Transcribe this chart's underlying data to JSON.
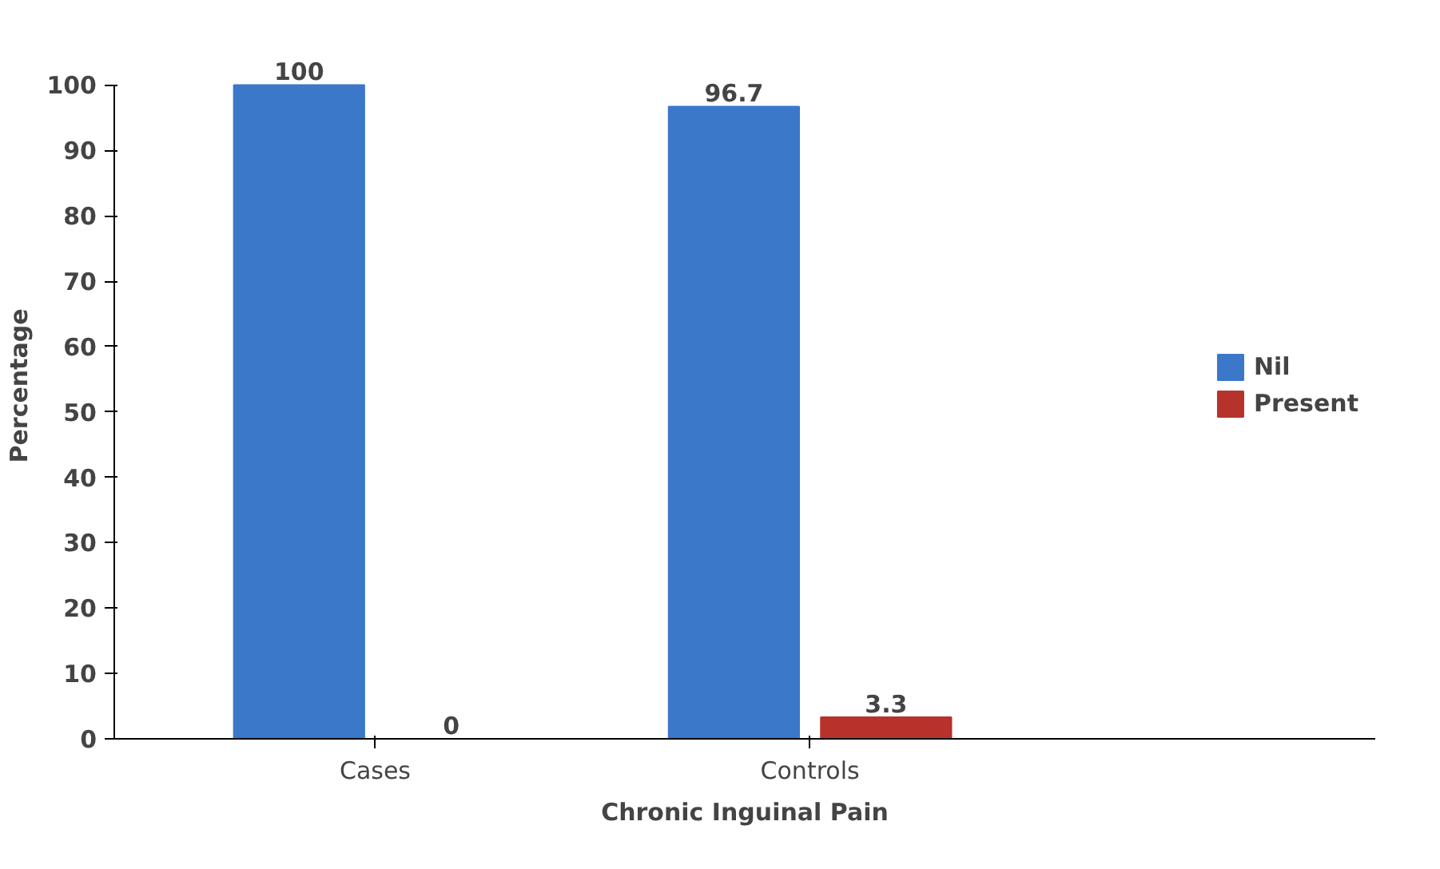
{
  "chart_data": {
    "type": "bar",
    "xlabel": "Chronic Inguinal Pain",
    "ylabel": "Percentage",
    "categories": [
      "Cases",
      "Controls"
    ],
    "series": [
      {
        "name": "Nil",
        "color": "#3b78c9",
        "values": [
          100,
          96.7
        ]
      },
      {
        "name": "Present",
        "color": "#b8322c",
        "values": [
          0,
          3.3
        ]
      }
    ],
    "ylim": [
      0,
      100
    ],
    "yticks": [
      0,
      10,
      20,
      30,
      40,
      50,
      60,
      70,
      80,
      90,
      100
    ],
    "data_labels": true,
    "legend": "right",
    "grid": false
  }
}
